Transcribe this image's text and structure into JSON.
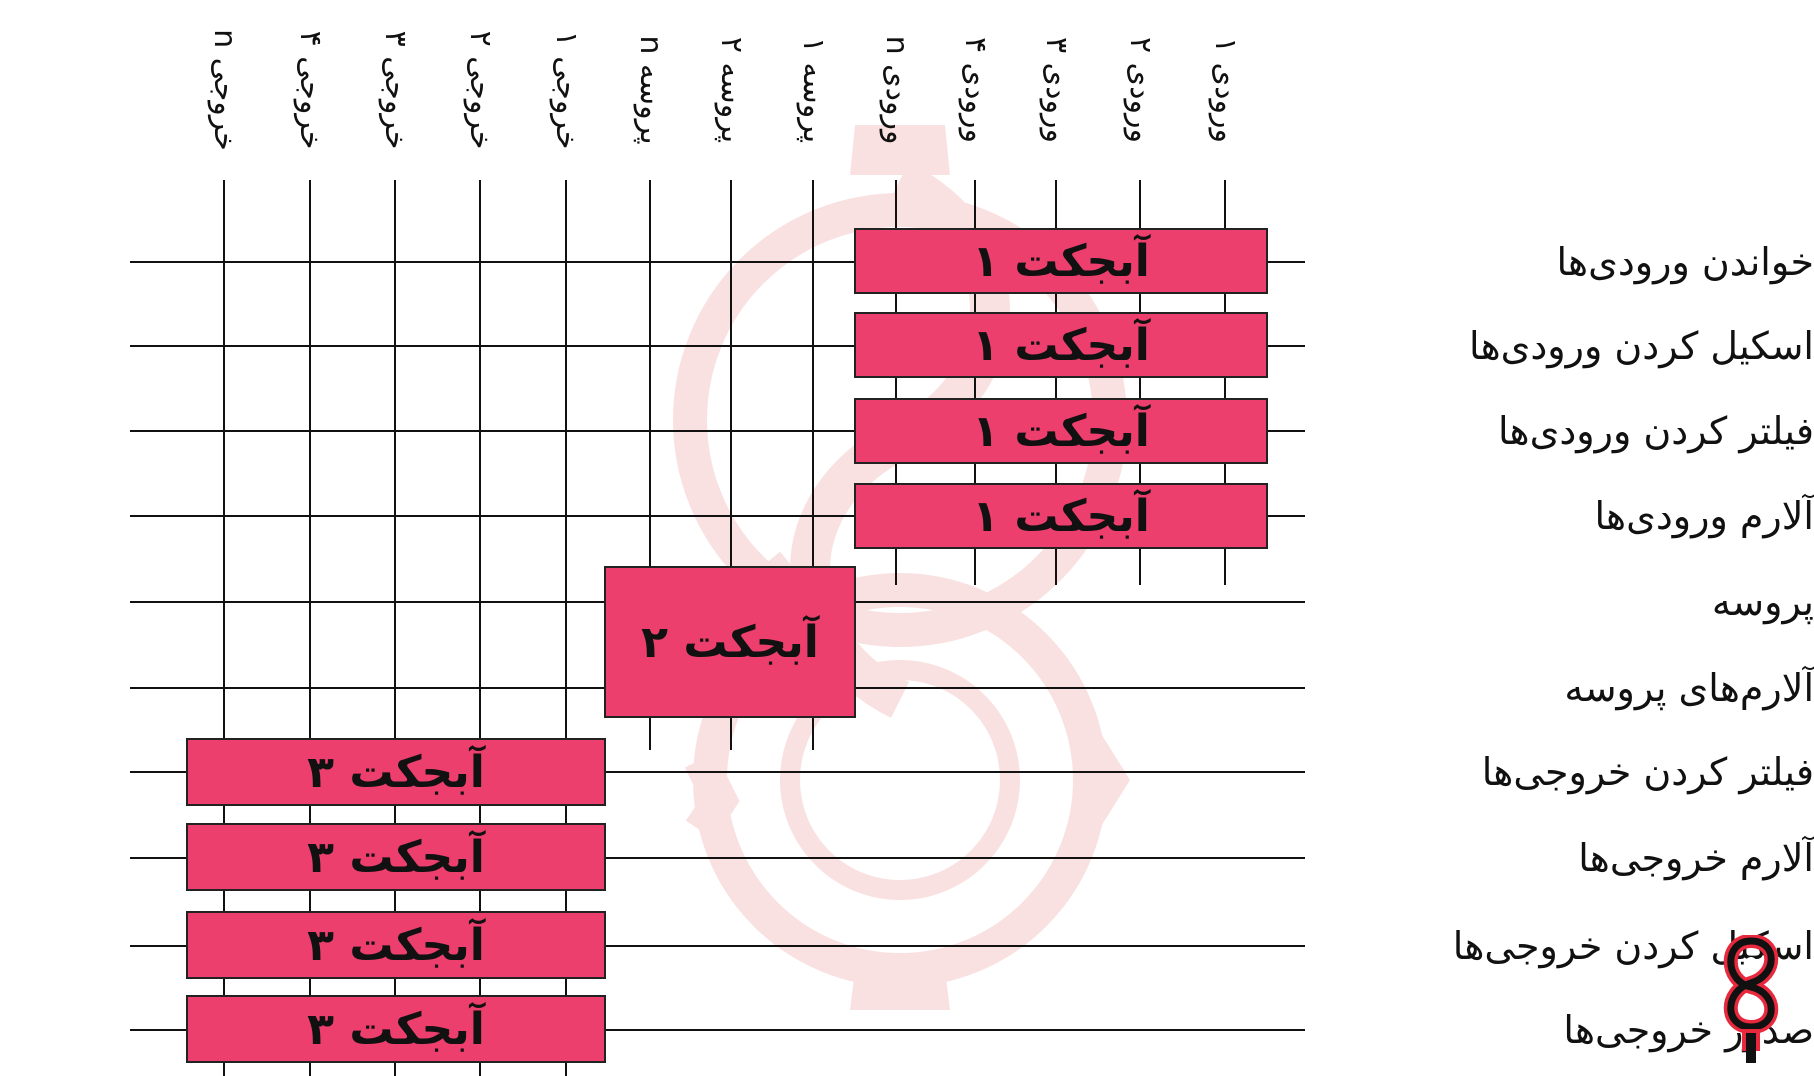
{
  "colors": {
    "box_fill": "#ec3f6d",
    "line": "#111111",
    "watermark": "#f7dada"
  },
  "columns": [
    "خروجی n",
    "خروجی ۴",
    "خروجی ۳",
    "خروجی ۲",
    "خروجی ۱",
    "پروسه n",
    "پروسه ۲",
    "پروسه ۱",
    "ورودی n",
    "ورودی ۴",
    "ورودی ۳",
    "ورودی ۲",
    "ورودی ۱"
  ],
  "rows": [
    "خواندن ورودی‌ها",
    "اسکیل کردن ورودی‌ها",
    "فیلتر کردن ورودی‌ها",
    "آلارم ورودی‌ها",
    "پروسه",
    "آلارم‌های پروسه",
    "فیلتر کردن خروجی‌ها",
    "آلارم خروجی‌ها",
    "اسکیل کردن خروجی‌ها",
    "صدور خروجی‌ها"
  ],
  "boxes": [
    {
      "label": "آبجکت ۱"
    },
    {
      "label": "آبجکت ۱"
    },
    {
      "label": "آبجکت ۱"
    },
    {
      "label": "آبجکت ۱"
    },
    {
      "label": "آبجکت ۲"
    },
    {
      "label": "آبجکت ۳"
    },
    {
      "label": "آبجکت ۳"
    },
    {
      "label": "آبجکت ۳"
    },
    {
      "label": "آبجکت ۳"
    }
  ],
  "logo": "logo-icon",
  "watermark": "gear-watermark-icon"
}
